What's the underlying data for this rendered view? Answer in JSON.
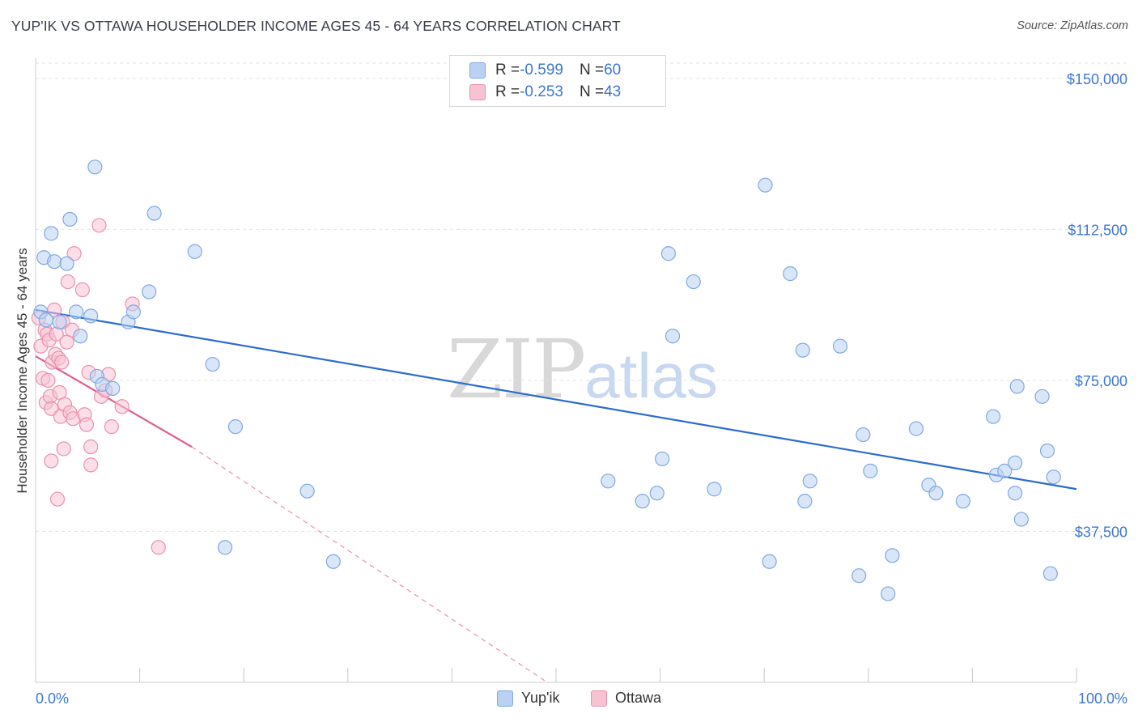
{
  "header": {
    "title": "YUP'IK VS OTTAWA HOUSEHOLDER INCOME AGES 45 - 64 YEARS CORRELATION CHART",
    "source": "Source: ZipAtlas.com"
  },
  "legend": {
    "rows": [
      {
        "r_label": "R = ",
        "r_value": "-0.599",
        "n_label": "N = ",
        "n_value": "60"
      },
      {
        "r_label": "R = ",
        "r_value": "-0.253",
        "n_label": "N = ",
        "n_value": "43"
      }
    ]
  },
  "watermark": {
    "zip": "ZIP",
    "atlas": "atlas"
  },
  "colors": {
    "yupik_fill": "#b9d1f3",
    "yupik_stroke": "#7fa9e3",
    "yupik_line": "#2b6ccf",
    "ottawa_fill": "#f7c3d3",
    "ottawa_stroke": "#ec90ad",
    "ottawa_line": "#e0608a",
    "axis_text": "#3d77d4",
    "grid": "#e2e2e2"
  },
  "chart_data": {
    "type": "scatter",
    "title": "YUP'IK VS OTTAWA HOUSEHOLDER INCOME AGES 45 - 64 YEARS CORRELATION CHART",
    "xlabel": "",
    "ylabel": "Householder Income Ages 45 - 64 years",
    "xlim": [
      0,
      100
    ],
    "ylim": [
      0,
      155000
    ],
    "x_tick_labels": [
      "0.0%",
      "100.0%"
    ],
    "y_ticks": [
      37500,
      75000,
      112500,
      150000
    ],
    "y_tick_labels": [
      "$37,500",
      "$75,000",
      "$112,500",
      "$150,000"
    ],
    "legend_labels": [
      "Yup'ik",
      "Ottawa"
    ],
    "series": [
      {
        "name": "Yup'ik",
        "points": [
          [
            0.5,
            92000
          ],
          [
            1.0,
            90000
          ],
          [
            0.8,
            105500
          ],
          [
            1.5,
            111500
          ],
          [
            1.8,
            104500
          ],
          [
            2.3,
            89500
          ],
          [
            3.0,
            104000
          ],
          [
            3.3,
            115000
          ],
          [
            3.9,
            92000
          ],
          [
            4.3,
            86000
          ],
          [
            5.3,
            91000
          ],
          [
            5.7,
            128000
          ],
          [
            5.9,
            76000
          ],
          [
            6.4,
            74000
          ],
          [
            7.4,
            73000
          ],
          [
            8.9,
            89500
          ],
          [
            9.4,
            92000
          ],
          [
            10.9,
            97000
          ],
          [
            11.4,
            116500
          ],
          [
            15.3,
            107000
          ],
          [
            17.0,
            79000
          ],
          [
            18.2,
            33500
          ],
          [
            19.2,
            63500
          ],
          [
            26.1,
            47500
          ],
          [
            28.6,
            30000
          ],
          [
            55.0,
            50000
          ],
          [
            58.3,
            45000
          ],
          [
            59.7,
            47000
          ],
          [
            60.2,
            55500
          ],
          [
            60.8,
            106500
          ],
          [
            61.2,
            86000
          ],
          [
            63.2,
            99500
          ],
          [
            65.2,
            48000
          ],
          [
            70.1,
            123500
          ],
          [
            70.5,
            30000
          ],
          [
            72.5,
            101500
          ],
          [
            73.7,
            82500
          ],
          [
            73.9,
            45000
          ],
          [
            74.4,
            50000
          ],
          [
            77.3,
            83500
          ],
          [
            79.1,
            26500
          ],
          [
            79.5,
            61500
          ],
          [
            80.2,
            52500
          ],
          [
            81.9,
            22000
          ],
          [
            82.3,
            31500
          ],
          [
            84.6,
            63000
          ],
          [
            85.8,
            49000
          ],
          [
            86.5,
            47000
          ],
          [
            89.1,
            45000
          ],
          [
            92.0,
            66000
          ],
          [
            92.3,
            51500
          ],
          [
            93.1,
            52500
          ],
          [
            94.1,
            47000
          ],
          [
            94.1,
            54500
          ],
          [
            94.3,
            73500
          ],
          [
            94.7,
            40500
          ],
          [
            96.7,
            71000
          ],
          [
            97.2,
            57500
          ],
          [
            97.5,
            27000
          ],
          [
            97.8,
            51000
          ]
        ],
        "trend": [
          [
            0,
            92500
          ],
          [
            100,
            48000
          ]
        ]
      },
      {
        "name": "Ottawa",
        "points": [
          [
            0.3,
            90500
          ],
          [
            0.5,
            83500
          ],
          [
            0.7,
            75500
          ],
          [
            0.9,
            87500
          ],
          [
            1.0,
            69500
          ],
          [
            1.1,
            86500
          ],
          [
            1.2,
            75000
          ],
          [
            1.3,
            85000
          ],
          [
            1.4,
            71000
          ],
          [
            1.5,
            68000
          ],
          [
            1.5,
            55000
          ],
          [
            1.6,
            79500
          ],
          [
            1.8,
            92500
          ],
          [
            1.9,
            81500
          ],
          [
            2.0,
            86500
          ],
          [
            2.1,
            45500
          ],
          [
            2.2,
            80500
          ],
          [
            2.3,
            72000
          ],
          [
            2.4,
            66000
          ],
          [
            2.5,
            79500
          ],
          [
            2.6,
            89500
          ],
          [
            2.7,
            58000
          ],
          [
            2.8,
            69000
          ],
          [
            3.0,
            84500
          ],
          [
            3.1,
            99500
          ],
          [
            3.3,
            67000
          ],
          [
            3.5,
            87500
          ],
          [
            3.6,
            65500
          ],
          [
            3.7,
            106500
          ],
          [
            4.5,
            97500
          ],
          [
            4.7,
            66500
          ],
          [
            4.9,
            64000
          ],
          [
            5.1,
            77000
          ],
          [
            5.3,
            54000
          ],
          [
            5.3,
            58500
          ],
          [
            6.1,
            113500
          ],
          [
            6.3,
            71000
          ],
          [
            7.0,
            76500
          ],
          [
            7.3,
            63500
          ],
          [
            8.3,
            68500
          ],
          [
            9.3,
            94000
          ],
          [
            11.8,
            33500
          ],
          [
            6.7,
            72500
          ]
        ],
        "trend": [
          [
            0,
            81000
          ],
          [
            15,
            58500
          ]
        ],
        "trend_extension": [
          [
            15,
            58500
          ],
          [
            55,
            -10000
          ]
        ]
      }
    ]
  }
}
